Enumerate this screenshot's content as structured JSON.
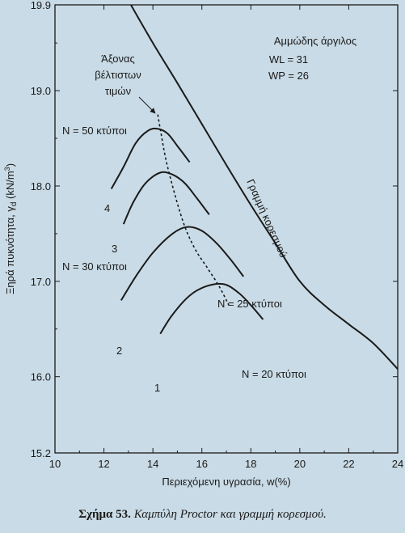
{
  "chart_data": {
    "type": "line",
    "xlabel": "Περιεχόμενη υγρασία, w(%)",
    "ylabel": "Ξηρά πυκνότητα, γ",
    "ylabel_sub": "d",
    "ylabel_unit": " (kN/m",
    "ylabel_sup": "3",
    "ylabel_close": ")",
    "xlim": [
      10,
      24
    ],
    "ylim": [
      15.2,
      19.9
    ],
    "xticks": [
      10,
      12,
      14,
      16,
      18,
      20,
      22,
      24
    ],
    "yticks": [
      15.2,
      16.0,
      17.0,
      18.0,
      19.0,
      19.9
    ],
    "xtick_labels": [
      "10",
      "12",
      "14",
      "16",
      "18",
      "20",
      "22",
      "24"
    ],
    "ytick_labels": [
      "15.2",
      "16.0",
      "17.0",
      "18.0",
      "19.0",
      "19.9"
    ],
    "grid": false,
    "material": {
      "title": "Αμμώδης άργιλος",
      "wl": "WL = 31",
      "wp": "WP = 26"
    },
    "series": [
      {
        "name": "N = 20 κτύποι",
        "number": "1",
        "x": [
          14.3,
          14.8,
          15.5,
          16.2,
          16.9,
          17.5,
          18.0,
          18.5
        ],
        "y": [
          16.45,
          16.65,
          16.85,
          16.95,
          16.97,
          16.88,
          16.75,
          16.6
        ]
      },
      {
        "name": "N = 25 κτύποι",
        "number": "2",
        "x": [
          12.7,
          13.3,
          14.0,
          14.8,
          15.4,
          16.0,
          16.6,
          17.2,
          17.7
        ],
        "y": [
          16.8,
          17.05,
          17.3,
          17.5,
          17.57,
          17.53,
          17.4,
          17.22,
          17.05
        ]
      },
      {
        "name": "N = 30 κτύποι",
        "number": "3",
        "x": [
          12.8,
          13.2,
          13.7,
          14.3,
          14.8,
          15.3,
          15.8,
          16.3
        ],
        "y": [
          17.6,
          17.83,
          18.03,
          18.14,
          18.12,
          18.03,
          17.87,
          17.7
        ]
      },
      {
        "name": "N = 50 κτύποι",
        "number": "4",
        "x": [
          12.3,
          12.8,
          13.3,
          13.8,
          14.2,
          14.6,
          15.0,
          15.5
        ],
        "y": [
          17.97,
          18.2,
          18.45,
          18.58,
          18.6,
          18.55,
          18.42,
          18.25
        ]
      }
    ],
    "saturation_line": {
      "label": "Γραμμή κορεσμού",
      "x": [
        13.1,
        14.0,
        15.0,
        16.0,
        17.0,
        18.0,
        19.0,
        20.0,
        21.0,
        22.0,
        23.0,
        24.0
      ],
      "y": [
        19.9,
        19.5,
        19.08,
        18.65,
        18.22,
        17.8,
        17.4,
        17.0,
        16.75,
        16.55,
        16.35,
        16.08
      ]
    },
    "optimum_line": {
      "label_lines": [
        "Άξονας",
        "βέλτιστων",
        "τιμών"
      ],
      "x": [
        14.2,
        14.3,
        14.6,
        15.2,
        15.7,
        16.2,
        16.7,
        17.1
      ],
      "y": [
        18.75,
        18.6,
        18.2,
        17.65,
        17.35,
        17.15,
        16.95,
        16.75
      ]
    }
  },
  "caption": {
    "label": "Σχήμα 53.",
    "text": " Καμπύλη Proctor και γραμμή κορεσμού."
  }
}
